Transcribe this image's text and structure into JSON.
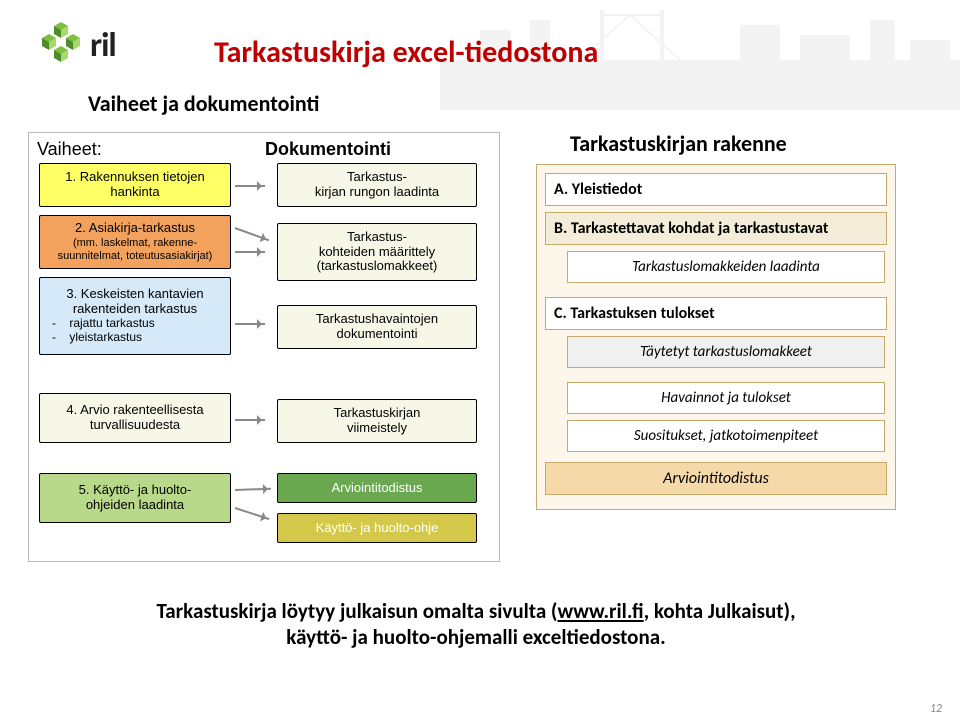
{
  "title": "Tarkastuskirja excel-tiedostona",
  "subtitle_left": "Vaiheet ja dokumentointi",
  "subtitle_right": "Tarkastuskirjan rakenne",
  "headers": {
    "vaiheet": "Vaiheet:",
    "dok": "Dokumentointi"
  },
  "left": {
    "v1": "1. Rakennuksen tietojen\nhankinta",
    "v2": "2. Asiakirja-tarkastus",
    "v2_sub": "(mm. laskelmat, rakenne-\nsuunnitelmat, toteutusasiakirjat)",
    "v3": "3. Keskeisten kantavien\nrakenteiden tarkastus",
    "v3_li1": "-    rajattu tarkastus",
    "v3_li2": "-    yleistarkastus",
    "v4": "4. Arvio rakenteellisesta\nturvallisuudesta",
    "v5": "5. Käyttö- ja huolto-\nohjeiden laadinta",
    "d1": "Tarkastus-\nkirjan rungon laadinta",
    "d2": "Tarkastus-\nkohteiden määrittely\n(tarkastuslomakkeet)",
    "d3": "Tarkastushavaintojen\ndokumentointi",
    "d4": "Tarkastuskirjan\nviimeistely",
    "d5": "Arviointitodistus",
    "d6": "Käyttö- ja huolto-ohje"
  },
  "right": {
    "a": "A. Yleistiedot",
    "b": "B. Tarkastettavat kohdat ja tarkastustavat",
    "b_sub": "Tarkastuslomakkeiden laadinta",
    "c": "C. Tarkastuksen tulokset",
    "c_sub1": "Täytetyt tarkastuslomakkeet",
    "c_sub2": "Havainnot ja tulokset",
    "c_sub3": "Suositukset, jatkotoimenpiteet",
    "cert": "Arviointitodistus"
  },
  "caption": {
    "t1": "Tarkastuskirja löytyy julkaisun omalta sivulta (",
    "link": "www.ril.fi",
    "t2": ", kohta Julkaisut),",
    "t3": "käyttö- ja huolto-ohjemalli exceltiedostona."
  },
  "pagenum": "12",
  "colors": {
    "title": "#c00000",
    "yellow": "#ffff66",
    "orange": "#f2a25c",
    "lblue": "#d6e9f8",
    "green": "#b8d98a",
    "dgreen": "#6aa84f",
    "dyellow": "#d4c84a",
    "offwhite": "#f7f7e8",
    "right_border": "#c9a96a",
    "right_bg": "#fdf6ea",
    "cert_bg": "#f6d9a8"
  }
}
